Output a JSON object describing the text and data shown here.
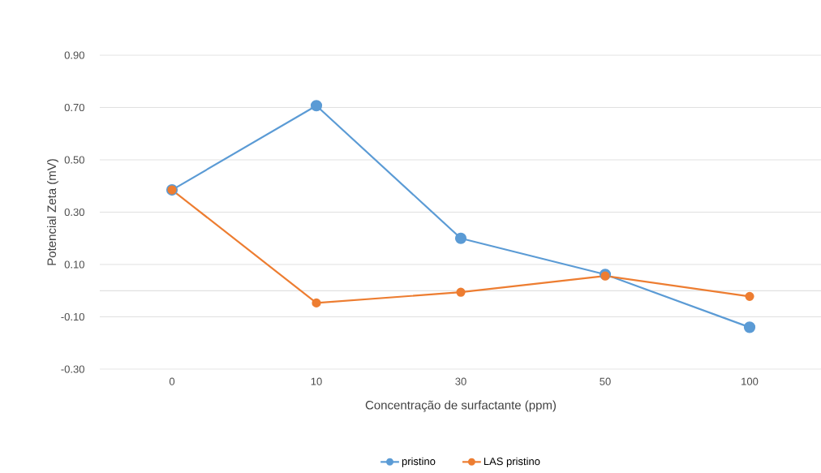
{
  "chart_data": {
    "type": "line",
    "xlabel": "Concentração de surfactante (ppm)",
    "ylabel": "Potencial Zeta (mV)",
    "categories": [
      "0",
      "10",
      "30",
      "50",
      "100"
    ],
    "series": [
      {
        "name": "pristino",
        "color": "#5b9bd5",
        "values": [
          0.385,
          0.707,
          0.2,
          0.062,
          -0.14
        ]
      },
      {
        "name": "LAS pristino",
        "color": "#ed7d31",
        "values": [
          0.385,
          -0.047,
          -0.006,
          0.056,
          -0.022
        ]
      }
    ],
    "ylim": [
      -0.3,
      0.9
    ],
    "yticks": [
      {
        "value": -0.3,
        "label": "-0.30"
      },
      {
        "value": -0.1,
        "label": "-0.10"
      },
      {
        "value": 0.1,
        "label": "0.10"
      },
      {
        "value": 0.3,
        "label": "0.30"
      },
      {
        "value": 0.5,
        "label": "0.50"
      },
      {
        "value": 0.7,
        "label": "0.70"
      },
      {
        "value": 0.9,
        "label": "0.90"
      }
    ],
    "grid": "y",
    "legend": "bottom",
    "marker": "circle",
    "line_style": "solid"
  }
}
